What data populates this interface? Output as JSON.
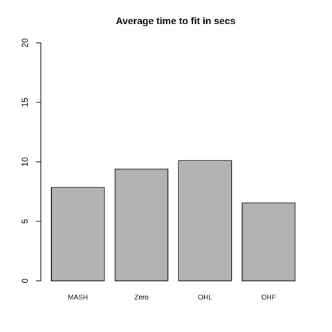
{
  "chart_data": {
    "type": "bar",
    "title": "Average time to fit in secs",
    "xlabel": "",
    "ylabel": "",
    "categories": [
      "MASH",
      "Zero",
      "OHL",
      "OHF"
    ],
    "values": [
      7.85,
      9.4,
      10.1,
      6.55
    ],
    "ylim": [
      0,
      20
    ],
    "yticks": [
      0,
      5,
      10,
      15,
      20
    ],
    "bar_color": "#b3b3b3",
    "grid": false,
    "legend": "none"
  }
}
